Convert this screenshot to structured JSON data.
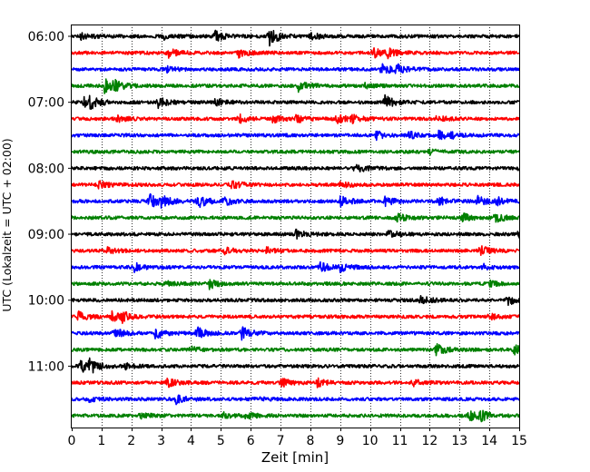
{
  "chart_data": {
    "type": "line",
    "title": "",
    "xlabel": "Zeit  [min]",
    "ylabel": "UTC (Lokalzeit = UTC + 02:00)",
    "xlim": [
      0,
      15
    ],
    "x_ticks": [
      0,
      1,
      2,
      3,
      4,
      5,
      6,
      7,
      8,
      9,
      10,
      11,
      12,
      13,
      14,
      15
    ],
    "grid": "vertical dotted lines at each minute",
    "trace_interval_minutes": 15,
    "first_trace_utc": "06:00",
    "y_tick_labels": [
      "06:00",
      "07:00",
      "08:00",
      "09:00",
      "10:00",
      "11:00"
    ],
    "colors": {
      "black": "#000000",
      "red": "#ff0000",
      "blue": "#0000ff",
      "green": "#008000"
    },
    "color_cycle": [
      "black",
      "red",
      "blue",
      "green"
    ],
    "traces": [
      {
        "start": "06:00",
        "color": "black",
        "events": [
          [
            0.3,
            0.8
          ],
          [
            3.1,
            0.8
          ],
          [
            4.8,
            1.2
          ],
          [
            6.6,
            2.5
          ],
          [
            8.0,
            0.8
          ]
        ]
      },
      {
        "start": "06:15",
        "color": "red",
        "events": [
          [
            3.2,
            1.2
          ],
          [
            5.6,
            1.0
          ],
          [
            10.1,
            1.3
          ],
          [
            10.6,
            1.0
          ]
        ]
      },
      {
        "start": "06:30",
        "color": "blue",
        "events": [
          [
            3.2,
            0.6
          ],
          [
            10.4,
            1.5
          ],
          [
            10.9,
            1.2
          ]
        ]
      },
      {
        "start": "06:45",
        "color": "green",
        "events": [
          [
            1.1,
            1.7
          ],
          [
            1.4,
            1.2
          ],
          [
            7.6,
            1.3
          ],
          [
            9.8,
            0.6
          ]
        ]
      },
      {
        "start": "07:00",
        "color": "black",
        "events": [
          [
            0.4,
            1.3
          ],
          [
            0.6,
            1.2
          ],
          [
            2.9,
            1.2
          ],
          [
            4.8,
            1.0
          ],
          [
            10.5,
            1.6
          ]
        ]
      },
      {
        "start": "07:15",
        "color": "red",
        "events": [
          [
            1.5,
            0.8
          ],
          [
            5.6,
            1.0
          ],
          [
            6.7,
            1.0
          ],
          [
            7.5,
            1.0
          ],
          [
            8.9,
            1.0
          ],
          [
            9.4,
            0.8
          ],
          [
            12.2,
            0.8
          ]
        ]
      },
      {
        "start": "07:30",
        "color": "blue",
        "events": [
          [
            10.2,
            1.0
          ],
          [
            11.3,
            1.0
          ],
          [
            12.3,
            1.0
          ],
          [
            12.7,
            0.6
          ]
        ]
      },
      {
        "start": "07:45",
        "color": "green",
        "events": [
          [
            12.0,
            0.6
          ]
        ]
      },
      {
        "start": "08:00",
        "color": "black",
        "events": [
          [
            9.5,
            1.2
          ],
          [
            15.0,
            0.8
          ]
        ]
      },
      {
        "start": "08:15",
        "color": "red",
        "events": [
          [
            0.9,
            1.0
          ],
          [
            5.3,
            1.2
          ],
          [
            9.0,
            0.8
          ]
        ]
      },
      {
        "start": "08:30",
        "color": "blue",
        "events": [
          [
            2.6,
            1.8
          ],
          [
            3.0,
            1.2
          ],
          [
            4.2,
            1.8
          ],
          [
            5.1,
            1.0
          ],
          [
            9.0,
            1.3
          ],
          [
            10.5,
            1.0
          ],
          [
            12.3,
            1.0
          ],
          [
            13.6,
            1.2
          ],
          [
            14.2,
            1.0
          ]
        ]
      },
      {
        "start": "08:45",
        "color": "green",
        "events": [
          [
            10.9,
            1.0
          ],
          [
            13.1,
            1.0
          ],
          [
            14.2,
            1.2
          ]
        ]
      },
      {
        "start": "09:00",
        "color": "black",
        "events": [
          [
            7.5,
            1.0
          ],
          [
            10.6,
            1.0
          ],
          [
            15.0,
            1.2
          ]
        ]
      },
      {
        "start": "09:15",
        "color": "red",
        "events": [
          [
            1.2,
            0.8
          ],
          [
            5.1,
            0.8
          ],
          [
            6.5,
            0.8
          ],
          [
            13.7,
            1.3
          ]
        ]
      },
      {
        "start": "09:30",
        "color": "blue",
        "events": [
          [
            2.1,
            1.0
          ],
          [
            8.3,
            1.2
          ],
          [
            9.0,
            1.0
          ],
          [
            13.8,
            0.6
          ]
        ]
      },
      {
        "start": "09:45",
        "color": "green",
        "events": [
          [
            3.1,
            0.6
          ],
          [
            4.6,
            1.2
          ],
          [
            14.0,
            0.6
          ]
        ]
      },
      {
        "start": "10:00",
        "color": "black",
        "events": [
          [
            11.7,
            1.0
          ],
          [
            14.6,
            1.3
          ]
        ]
      },
      {
        "start": "10:15",
        "color": "red",
        "events": [
          [
            0.2,
            1.3
          ],
          [
            1.3,
            1.3
          ],
          [
            1.7,
            1.0
          ],
          [
            14.0,
            0.6
          ]
        ]
      },
      {
        "start": "10:30",
        "color": "blue",
        "events": [
          [
            1.4,
            1.3
          ],
          [
            2.8,
            1.4
          ],
          [
            4.2,
            1.4
          ],
          [
            5.7,
            1.5
          ]
        ]
      },
      {
        "start": "10:45",
        "color": "green",
        "events": [
          [
            4.0,
            0.8
          ],
          [
            12.2,
            1.6
          ],
          [
            14.8,
            1.2
          ]
        ]
      },
      {
        "start": "11:00",
        "color": "black",
        "events": [
          [
            0.3,
            1.8
          ],
          [
            0.6,
            1.5
          ],
          [
            1.8,
            0.8
          ]
        ]
      },
      {
        "start": "11:15",
        "color": "red",
        "events": [
          [
            3.2,
            1.0
          ],
          [
            7.0,
            1.2
          ],
          [
            8.2,
            1.0
          ],
          [
            11.4,
            0.8
          ]
        ]
      },
      {
        "start": "11:30",
        "color": "blue",
        "events": [
          [
            0.5,
            1.0
          ],
          [
            3.5,
            1.1
          ],
          [
            6.1,
            0.6
          ]
        ]
      },
      {
        "start": "11:45",
        "color": "green",
        "events": [
          [
            2.3,
            0.6
          ],
          [
            5.1,
            0.6
          ],
          [
            5.8,
            0.8
          ],
          [
            13.3,
            1.3
          ],
          [
            13.7,
            1.2
          ]
        ]
      }
    ]
  }
}
